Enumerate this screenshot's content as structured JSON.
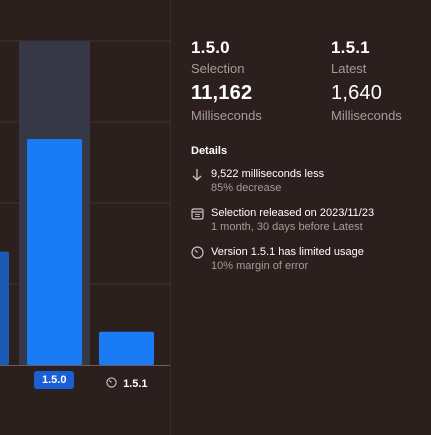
{
  "chart_data": {
    "type": "bar",
    "categories": [
      "",
      "1.5.0",
      "1.5.1"
    ],
    "values": [
      5600,
      11162,
      1640
    ],
    "ylim": [
      0,
      16000
    ],
    "grid": true,
    "highlighted_category": "1.5.0",
    "bar_color": "#1a7cf5",
    "partial_bar_color": "#1c5ab8",
    "highlight_band_color": "#363945"
  },
  "stats": {
    "selection": {
      "version": "1.5.0",
      "label": "Selection",
      "value": "11,162",
      "unit": "Milliseconds"
    },
    "latest": {
      "version": "1.5.1",
      "label": "Latest",
      "value": "1,640",
      "unit": "Milliseconds"
    }
  },
  "details": {
    "title": "Details",
    "items": [
      {
        "icon": "arrow-down-icon",
        "line1": "9,522 milliseconds less",
        "line2": "85% decrease"
      },
      {
        "icon": "calendar-icon",
        "line1": "Selection released on 2023/11/23",
        "line2": "1 month, 30 days before Latest"
      },
      {
        "icon": "gauge-icon",
        "line1": "Version 1.5.1 has limited usage",
        "line2": "10% margin of error"
      }
    ]
  },
  "colors": {
    "background": "#2c201f",
    "muted_text": "#a89a99",
    "accent": "#1a5fd6"
  }
}
